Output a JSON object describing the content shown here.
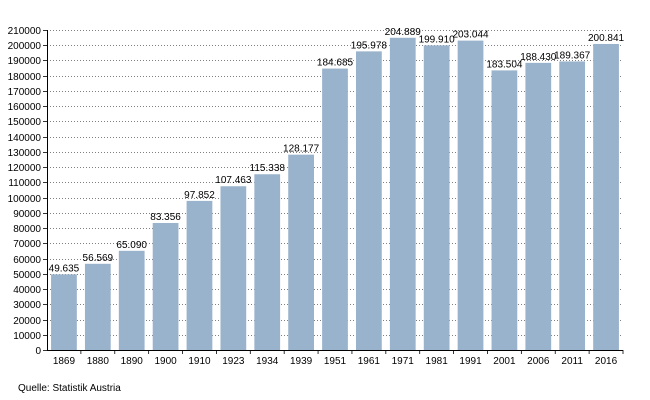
{
  "chart_data": {
    "type": "bar",
    "categories": [
      "1869",
      "1880",
      "1890",
      "1900",
      "1910",
      "1923",
      "1934",
      "1939",
      "1951",
      "1961",
      "1971",
      "1981",
      "1991",
      "2001",
      "2006",
      "2011",
      "2016"
    ],
    "values": [
      49635,
      56569,
      65090,
      83356,
      97852,
      107463,
      115338,
      128177,
      184685,
      195978,
      204889,
      199910,
      203044,
      183504,
      188430,
      189367,
      200841
    ],
    "value_labels": [
      "49.635",
      "56.569",
      "65.090",
      "83.356",
      "97.852",
      "107.463",
      "115.338",
      "128.177",
      "184.685",
      "195.978",
      "204.889",
      "199.910",
      "203.044",
      "183.504",
      "188.430",
      "189.367",
      "200.841"
    ],
    "ylim": [
      0,
      210000
    ],
    "y_tick_step": 10000,
    "grid": true,
    "title": "",
    "xlabel": "",
    "ylabel": "",
    "bar_color": "#9ab3cc",
    "grid_color": "#000000"
  },
  "footer": {
    "source": "Quelle: Statistik Austria"
  }
}
